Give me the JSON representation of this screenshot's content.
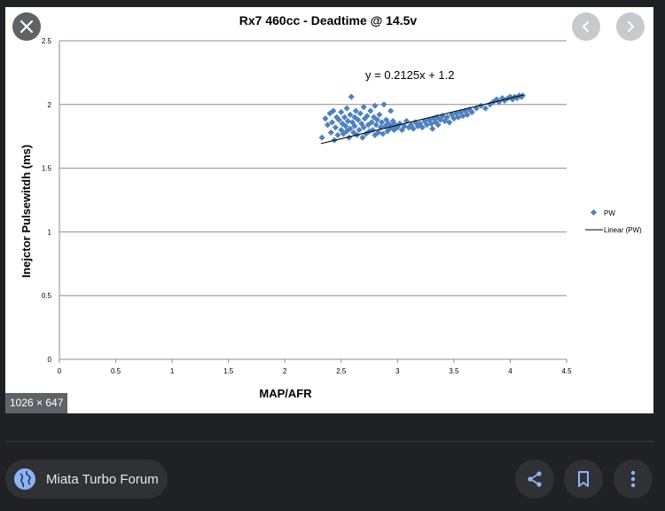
{
  "viewer": {
    "dimensions_badge": "1026 × 647",
    "source_name": "Miata Turbo Forum"
  },
  "colors": {
    "background": "#202124",
    "button": "#303134",
    "accent": "#8ab4f8",
    "series": "#4f81bd"
  },
  "icons": {
    "close": "close-icon",
    "prev": "chevron-left-icon",
    "next": "chevron-right-icon",
    "source": "globe-icon",
    "share": "share-icon",
    "save": "bookmark-icon",
    "more": "more-vert-icon"
  },
  "chart_data": {
    "type": "scatter",
    "title": "Rx7 460cc - Deadtime @ 14.5v",
    "xlabel": "MAP/AFR",
    "ylabel": "Inejctor Pulsewitdh (ms)",
    "xlim": [
      0,
      4.5
    ],
    "ylim": [
      0,
      2.5
    ],
    "xticks": [
      "0",
      "0.5",
      "1",
      "1.5",
      "2",
      "2.5",
      "3",
      "3.5",
      "4",
      "4.5"
    ],
    "yticks": [
      "0",
      "0.5",
      "1",
      "1.5",
      "2",
      "2.5"
    ],
    "grid": "horizontal",
    "legend_position": "right",
    "trendline": {
      "name": "Linear (PW)",
      "slope": 0.2125,
      "intercept": 1.2,
      "x_range": [
        2.32,
        4.12
      ]
    },
    "equation_label": "y = 0.2125x + 1.2",
    "series": [
      {
        "name": "PW",
        "points": [
          [
            2.33,
            1.74
          ],
          [
            2.36,
            1.89
          ],
          [
            2.38,
            1.84
          ],
          [
            2.4,
            1.93
          ],
          [
            2.41,
            1.78
          ],
          [
            2.42,
            1.86
          ],
          [
            2.43,
            1.95
          ],
          [
            2.44,
            1.72
          ],
          [
            2.45,
            1.82
          ],
          [
            2.46,
            1.9
          ],
          [
            2.47,
            1.76
          ],
          [
            2.48,
            1.88
          ],
          [
            2.5,
            1.8
          ],
          [
            2.5,
            1.94
          ],
          [
            2.51,
            1.85
          ],
          [
            2.52,
            1.77
          ],
          [
            2.53,
            1.9
          ],
          [
            2.54,
            1.83
          ],
          [
            2.55,
            1.97
          ],
          [
            2.55,
            1.79
          ],
          [
            2.56,
            1.87
          ],
          [
            2.57,
            1.74
          ],
          [
            2.58,
            1.92
          ],
          [
            2.58,
            1.81
          ],
          [
            2.59,
            2.06
          ],
          [
            2.6,
            1.86
          ],
          [
            2.61,
            1.78
          ],
          [
            2.62,
            1.9
          ],
          [
            2.62,
            1.83
          ],
          [
            2.63,
            1.95
          ],
          [
            2.64,
            1.76
          ],
          [
            2.65,
            1.88
          ],
          [
            2.66,
            1.8
          ],
          [
            2.67,
            1.93
          ],
          [
            2.68,
            1.85
          ],
          [
            2.69,
            1.74
          ],
          [
            2.7,
            1.98
          ],
          [
            2.7,
            1.82
          ],
          [
            2.71,
            1.89
          ],
          [
            2.72,
            1.77
          ],
          [
            2.73,
            1.91
          ],
          [
            2.74,
            1.84
          ],
          [
            2.75,
            1.79
          ],
          [
            2.76,
            1.95
          ],
          [
            2.77,
            1.86
          ],
          [
            2.78,
            1.8
          ],
          [
            2.79,
            1.9
          ],
          [
            2.8,
            1.76
          ],
          [
            2.8,
            1.99
          ],
          [
            2.81,
            1.84
          ],
          [
            2.82,
            1.88
          ],
          [
            2.83,
            1.78
          ],
          [
            2.84,
            1.92
          ],
          [
            2.85,
            1.82
          ],
          [
            2.86,
            1.86
          ],
          [
            2.87,
            1.77
          ],
          [
            2.88,
            2.0
          ],
          [
            2.89,
            1.83
          ],
          [
            2.9,
            1.88
          ],
          [
            2.91,
            1.79
          ],
          [
            2.92,
            1.85
          ],
          [
            2.93,
            1.81
          ],
          [
            2.94,
            1.95
          ],
          [
            2.95,
            1.83
          ],
          [
            2.96,
            1.87
          ],
          [
            2.97,
            1.8
          ],
          [
            2.98,
            1.84
          ],
          [
            3.0,
            1.82
          ],
          [
            3.02,
            1.85
          ],
          [
            3.04,
            1.8
          ],
          [
            3.06,
            1.83
          ],
          [
            3.08,
            1.87
          ],
          [
            3.1,
            1.82
          ],
          [
            3.12,
            1.84
          ],
          [
            3.14,
            1.81
          ],
          [
            3.16,
            1.86
          ],
          [
            3.18,
            1.83
          ],
          [
            3.2,
            1.85
          ],
          [
            3.22,
            1.82
          ],
          [
            3.24,
            1.87
          ],
          [
            3.26,
            1.84
          ],
          [
            3.28,
            1.88
          ],
          [
            3.3,
            1.85
          ],
          [
            3.31,
            1.81
          ],
          [
            3.32,
            1.89
          ],
          [
            3.34,
            1.86
          ],
          [
            3.35,
            1.9
          ],
          [
            3.36,
            1.84
          ],
          [
            3.38,
            1.88
          ],
          [
            3.4,
            1.91
          ],
          [
            3.42,
            1.87
          ],
          [
            3.44,
            1.9
          ],
          [
            3.46,
            1.86
          ],
          [
            3.48,
            1.92
          ],
          [
            3.5,
            1.89
          ],
          [
            3.52,
            1.93
          ],
          [
            3.54,
            1.9
          ],
          [
            3.56,
            1.94
          ],
          [
            3.58,
            1.91
          ],
          [
            3.6,
            1.95
          ],
          [
            3.62,
            1.92
          ],
          [
            3.64,
            1.96
          ],
          [
            3.66,
            1.94
          ],
          [
            3.7,
            1.97
          ],
          [
            3.74,
            1.99
          ],
          [
            3.78,
            1.97
          ],
          [
            3.82,
            2.0
          ],
          [
            3.85,
            2.02
          ],
          [
            3.88,
            2.04
          ],
          [
            3.9,
            2.02
          ],
          [
            3.93,
            2.05
          ],
          [
            3.95,
            2.03
          ],
          [
            3.98,
            2.05
          ],
          [
            4.0,
            2.06
          ],
          [
            4.02,
            2.04
          ],
          [
            4.04,
            2.06
          ],
          [
            4.06,
            2.05
          ],
          [
            4.08,
            2.07
          ],
          [
            4.1,
            2.06
          ],
          [
            4.11,
            2.07
          ]
        ]
      }
    ]
  }
}
